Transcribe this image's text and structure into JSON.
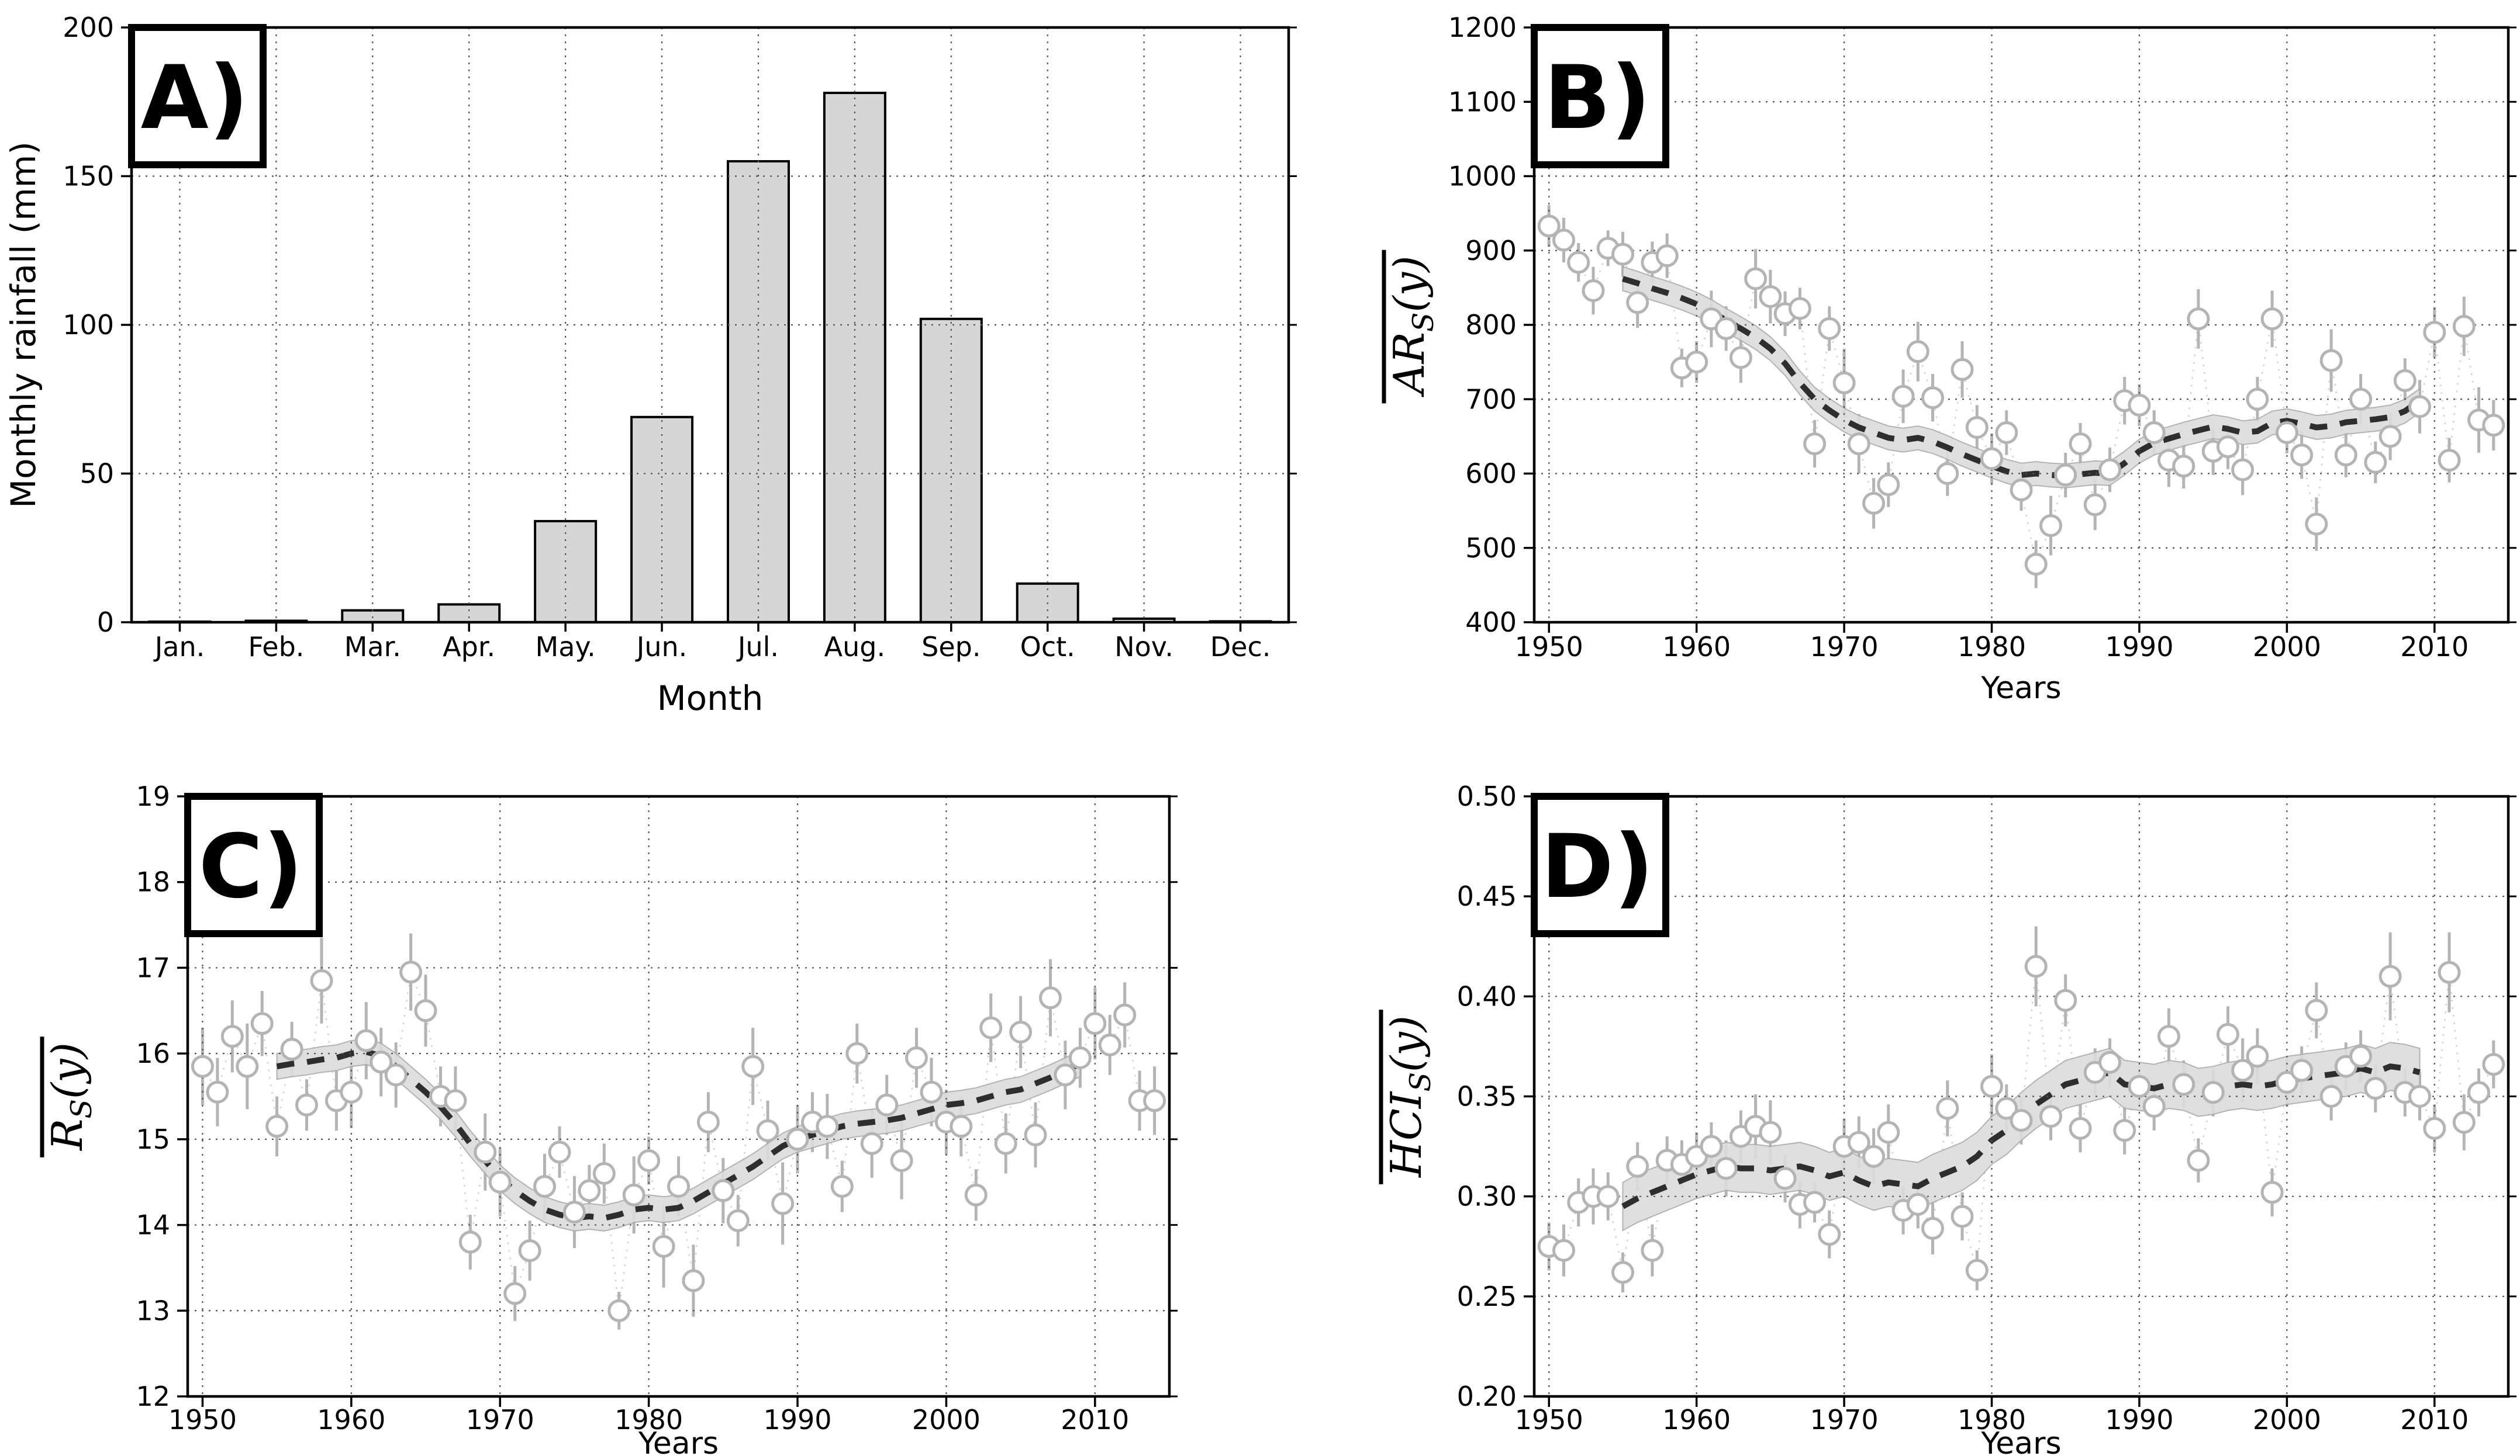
{
  "figure": {
    "background": "#ffffff",
    "colors": {
      "bar_fill": "#d6d6d6",
      "bar_edge": "#000000",
      "marker_edge": "#b4b4b4",
      "marker_fill": "#ffffff",
      "error_bar": "#b4b4b4",
      "connector": "#cccccc",
      "trend_line": "#2e2e2e",
      "trend_band": "#dcdcdc",
      "band_edge": "#ababab",
      "grid": "#555555",
      "frame": "#000000",
      "text": "#000000"
    }
  },
  "chart_data": [
    {
      "id": "A",
      "panel_label": "A)",
      "type": "bar",
      "xlabel": "Month",
      "ylabel": "Monthly rainfall (mm)",
      "categories": [
        "Jan.",
        "Feb.",
        "Mar.",
        "Apr.",
        "May.",
        "Jun.",
        "Jul.",
        "Aug.",
        "Sep.",
        "Oct.",
        "Nov.",
        "Dec."
      ],
      "values": [
        0.2,
        0.5,
        4,
        6,
        34,
        69,
        155,
        178,
        102,
        13,
        1.2,
        0.3
      ],
      "ylim": [
        0,
        200
      ],
      "yticks": [
        0,
        50,
        100,
        150,
        200
      ],
      "grid": true
    },
    {
      "id": "B",
      "panel_label": "B)",
      "type": "scatter",
      "xlabel": "Years",
      "ylabel": "AR_S(y)",
      "ylabel_math": {
        "pre": "AR",
        "sub": "S",
        "post": "(y)",
        "overline": true
      },
      "xlim": [
        1949,
        2015
      ],
      "ylim": [
        400,
        1200
      ],
      "xticks": [
        1950,
        1960,
        1970,
        1980,
        1990,
        2000,
        2010
      ],
      "yticks": [
        400,
        500,
        600,
        700,
        800,
        900,
        1000,
        1100,
        1200
      ],
      "grid": true,
      "scatter_start": 1950,
      "values": [
        933,
        914,
        884,
        846,
        903,
        895,
        830,
        884,
        893,
        742,
        750,
        808,
        795,
        756,
        862,
        838,
        815,
        822,
        640,
        795,
        722,
        640,
        560,
        585,
        704,
        764,
        702,
        600,
        740,
        662,
        620,
        655,
        578,
        478,
        530,
        598,
        640,
        558,
        605,
        698,
        692,
        655,
        618,
        610,
        808,
        630,
        636,
        605,
        700,
        808,
        655,
        625,
        532,
        752,
        625,
        700,
        615,
        650,
        725,
        690,
        790,
        618,
        798,
        672,
        665
      ],
      "yerr": [
        28,
        30,
        26,
        32,
        24,
        30,
        34,
        28,
        30,
        26,
        28,
        38,
        30,
        34,
        40,
        36,
        30,
        28,
        32,
        30,
        46,
        40,
        34,
        30,
        36,
        40,
        32,
        30,
        38,
        30,
        34,
        30,
        28,
        32,
        40,
        30,
        28,
        34,
        30,
        32,
        28,
        30,
        36,
        30,
        40,
        32,
        30,
        34,
        30,
        38,
        28,
        32,
        36,
        42,
        30,
        34,
        28,
        32,
        30,
        36,
        34,
        30,
        40,
        44,
        34
      ],
      "trend_start": 1955,
      "trend": [
        862,
        856,
        849,
        843,
        836,
        828,
        818,
        806,
        795,
        783,
        768,
        748,
        722,
        700,
        685,
        672,
        662,
        655,
        648,
        645,
        648,
        643,
        635,
        626,
        618,
        610,
        603,
        598,
        600,
        598,
        597,
        599,
        601,
        600,
        614,
        630,
        641,
        647,
        653,
        658,
        663,
        660,
        655,
        657,
        668,
        671,
        667,
        662,
        664,
        669,
        671,
        673,
        676,
        684,
        698
      ],
      "band": 16
    },
    {
      "id": "C",
      "panel_label": "C)",
      "type": "scatter",
      "xlabel": "Years",
      "ylabel": "R_S(y)",
      "ylabel_math": {
        "pre": "R",
        "sub": "S",
        "post": "(y)",
        "overline": true
      },
      "xlim": [
        1949,
        2015
      ],
      "ylim": [
        12,
        19
      ],
      "xticks": [
        1950,
        1960,
        1970,
        1980,
        1990,
        2000,
        2010
      ],
      "yticks": [
        12,
        13,
        14,
        15,
        16,
        17,
        18,
        19
      ],
      "grid": true,
      "scatter_start": 1950,
      "values": [
        15.85,
        15.55,
        16.2,
        15.85,
        16.35,
        15.15,
        16.05,
        15.4,
        16.85,
        15.45,
        15.55,
        16.15,
        15.9,
        15.75,
        16.95,
        16.5,
        15.5,
        15.45,
        13.8,
        14.85,
        14.5,
        13.2,
        13.7,
        14.45,
        14.85,
        14.15,
        14.4,
        14.6,
        13.0,
        14.35,
        14.75,
        13.75,
        14.45,
        13.35,
        15.2,
        14.4,
        14.05,
        15.85,
        15.1,
        14.25,
        15.0,
        15.2,
        15.15,
        14.45,
        16.0,
        14.95,
        15.4,
        14.75,
        15.95,
        15.55,
        15.2,
        15.15,
        14.35,
        16.3,
        14.95,
        16.25,
        15.05,
        16.65,
        15.75,
        15.95,
        16.35,
        16.1,
        16.45,
        15.45,
        15.45
      ],
      "yerr": [
        0.45,
        0.4,
        0.42,
        0.5,
        0.38,
        0.35,
        0.32,
        0.3,
        0.5,
        0.35,
        0.42,
        0.45,
        0.4,
        0.38,
        0.45,
        0.42,
        0.35,
        0.4,
        0.32,
        0.45,
        0.4,
        0.32,
        0.35,
        0.38,
        0.3,
        0.42,
        0.3,
        0.35,
        0.22,
        0.45,
        0.28,
        0.48,
        0.35,
        0.42,
        0.35,
        0.38,
        0.3,
        0.45,
        0.35,
        0.48,
        0.4,
        0.35,
        0.38,
        0.3,
        0.35,
        0.4,
        0.35,
        0.45,
        0.35,
        0.4,
        0.38,
        0.35,
        0.3,
        0.4,
        0.35,
        0.42,
        0.38,
        0.45,
        0.4,
        0.35,
        0.42,
        0.35,
        0.38,
        0.35,
        0.4
      ],
      "trend_start": 1955,
      "trend": [
        15.85,
        15.88,
        15.9,
        15.93,
        15.95,
        16.0,
        16.02,
        15.97,
        15.85,
        15.7,
        15.55,
        15.38,
        15.18,
        14.95,
        14.75,
        14.55,
        14.4,
        14.28,
        14.18,
        14.12,
        14.08,
        14.1,
        14.08,
        14.12,
        14.18,
        14.2,
        14.18,
        14.2,
        14.28,
        14.38,
        14.48,
        14.58,
        14.68,
        14.8,
        14.92,
        15.0,
        15.05,
        15.1,
        15.15,
        15.18,
        15.2,
        15.22,
        15.25,
        15.3,
        15.35,
        15.4,
        15.42,
        15.45,
        15.5,
        15.55,
        15.58,
        15.65,
        15.72,
        15.8,
        15.88
      ],
      "band": 0.15
    },
    {
      "id": "D",
      "panel_label": "D)",
      "type": "scatter",
      "xlabel": "Years",
      "ylabel": "HCI_S(y)",
      "ylabel_math": {
        "pre": "HCI",
        "sub": "S",
        "post": "(y)",
        "overline": true
      },
      "xlim": [
        1949,
        2015
      ],
      "ylim": [
        0.2,
        0.5
      ],
      "xticks": [
        1950,
        1960,
        1970,
        1980,
        1990,
        2000,
        2010
      ],
      "yticks": [
        0.2,
        0.25,
        0.3,
        0.35,
        0.4,
        0.45,
        0.5
      ],
      "ytick_labels": [
        "0.20",
        "0.25",
        "0.30",
        "0.35",
        "0.40",
        "0.45",
        "0.50"
      ],
      "grid": true,
      "scatter_start": 1950,
      "values": [
        0.275,
        0.273,
        0.297,
        0.3,
        0.3,
        0.262,
        0.315,
        0.273,
        0.318,
        0.316,
        0.32,
        0.325,
        0.314,
        0.33,
        0.335,
        0.332,
        0.309,
        0.296,
        0.297,
        0.281,
        0.325,
        0.327,
        0.32,
        0.332,
        0.293,
        0.296,
        0.284,
        0.344,
        0.29,
        0.263,
        0.355,
        0.344,
        0.338,
        0.415,
        0.34,
        0.398,
        0.334,
        0.362,
        0.367,
        0.333,
        0.355,
        0.345,
        0.38,
        0.356,
        0.318,
        0.352,
        0.381,
        0.363,
        0.37,
        0.302,
        0.357,
        0.363,
        0.393,
        0.35,
        0.365,
        0.37,
        0.354,
        0.41,
        0.352,
        0.35,
        0.334,
        0.412,
        0.337,
        0.352,
        0.366
      ],
      "yerr": [
        0.012,
        0.013,
        0.012,
        0.014,
        0.012,
        0.01,
        0.012,
        0.013,
        0.012,
        0.012,
        0.012,
        0.012,
        0.014,
        0.013,
        0.016,
        0.016,
        0.012,
        0.012,
        0.01,
        0.012,
        0.014,
        0.013,
        0.014,
        0.014,
        0.012,
        0.012,
        0.013,
        0.014,
        0.012,
        0.01,
        0.016,
        0.012,
        0.012,
        0.02,
        0.012,
        0.013,
        0.012,
        0.012,
        0.012,
        0.012,
        0.01,
        0.012,
        0.014,
        0.012,
        0.011,
        0.012,
        0.014,
        0.016,
        0.014,
        0.012,
        0.012,
        0.012,
        0.014,
        0.012,
        0.012,
        0.013,
        0.012,
        0.022,
        0.012,
        0.012,
        0.012,
        0.02,
        0.014,
        0.012,
        0.012
      ],
      "trend_start": 1955,
      "trend": [
        0.295,
        0.299,
        0.302,
        0.305,
        0.308,
        0.311,
        0.313,
        0.315,
        0.314,
        0.314,
        0.313,
        0.314,
        0.315,
        0.313,
        0.31,
        0.312,
        0.308,
        0.305,
        0.307,
        0.306,
        0.305,
        0.309,
        0.312,
        0.315,
        0.32,
        0.328,
        0.333,
        0.34,
        0.346,
        0.351,
        0.356,
        0.358,
        0.36,
        0.362,
        0.356,
        0.355,
        0.354,
        0.356,
        0.355,
        0.352,
        0.353,
        0.355,
        0.356,
        0.355,
        0.356,
        0.358,
        0.359,
        0.36,
        0.361,
        0.362,
        0.364,
        0.362,
        0.365,
        0.364,
        0.362
      ],
      "band": 0.012
    }
  ]
}
